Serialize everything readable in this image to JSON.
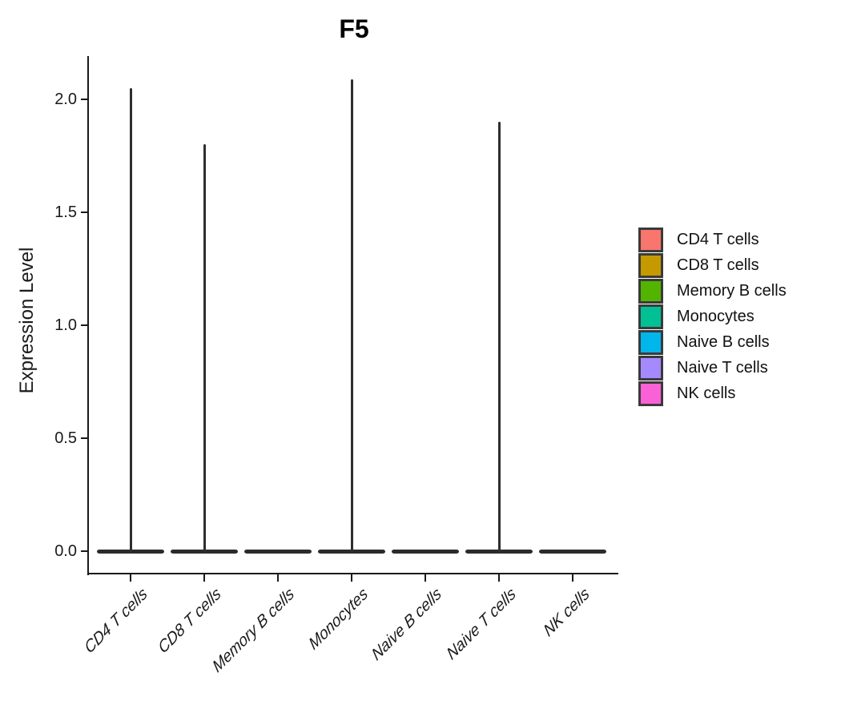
{
  "page": {
    "background": "#ffffff"
  },
  "chart_data": {
    "type": "violin",
    "title": "F5",
    "ylabel": "Expression Level",
    "xlabel": "",
    "categories": [
      "CD4 T cells",
      "CD8 T cells",
      "Memory B cells",
      "Monocytes",
      "Naive B cells",
      "Naive T cells",
      "NK cells"
    ],
    "series": [
      {
        "name": "CD4 T cells",
        "color": "#F8766D",
        "baseline": 0.0,
        "max_expression": 2.05,
        "has_spike": true
      },
      {
        "name": "CD8 T cells",
        "color": "#C49A00",
        "baseline": 0.0,
        "max_expression": 1.8,
        "has_spike": true
      },
      {
        "name": "Memory B cells",
        "color": "#53B400",
        "baseline": 0.0,
        "max_expression": 0.0,
        "has_spike": false
      },
      {
        "name": "Monocytes",
        "color": "#00C094",
        "baseline": 0.0,
        "max_expression": 2.09,
        "has_spike": true
      },
      {
        "name": "Naive B cells",
        "color": "#00B6EB",
        "baseline": 0.0,
        "max_expression": 0.0,
        "has_spike": false
      },
      {
        "name": "Naive T cells",
        "color": "#A58AFF",
        "baseline": 0.0,
        "max_expression": 1.9,
        "has_spike": true
      },
      {
        "name": "NK cells",
        "color": "#FB61D7",
        "baseline": 0.0,
        "max_expression": 0.0,
        "has_spike": false
      }
    ],
    "yticks": [
      {
        "label": "0.0",
        "value": 0.0
      },
      {
        "label": "0.5",
        "value": 0.5
      },
      {
        "label": "1.0",
        "value": 1.0
      },
      {
        "label": "1.5",
        "value": 1.5
      },
      {
        "label": "2.0",
        "value": 2.0
      }
    ],
    "ylim": [
      -0.1,
      2.19
    ],
    "grid": false,
    "violin_outline_color": "#2b2b2b",
    "axis_color": "#1a1a1a",
    "legend": {
      "position": "right",
      "entries": [
        {
          "label": "CD4 T cells",
          "color": "#F8766D"
        },
        {
          "label": "CD8 T cells",
          "color": "#C49A00"
        },
        {
          "label": "Memory B cells",
          "color": "#53B400"
        },
        {
          "label": "Monocytes",
          "color": "#00C094"
        },
        {
          "label": "Naive B cells",
          "color": "#00B6EB"
        },
        {
          "label": "Naive T cells",
          "color": "#A58AFF"
        },
        {
          "label": "NK cells",
          "color": "#FB61D7"
        }
      ]
    }
  }
}
